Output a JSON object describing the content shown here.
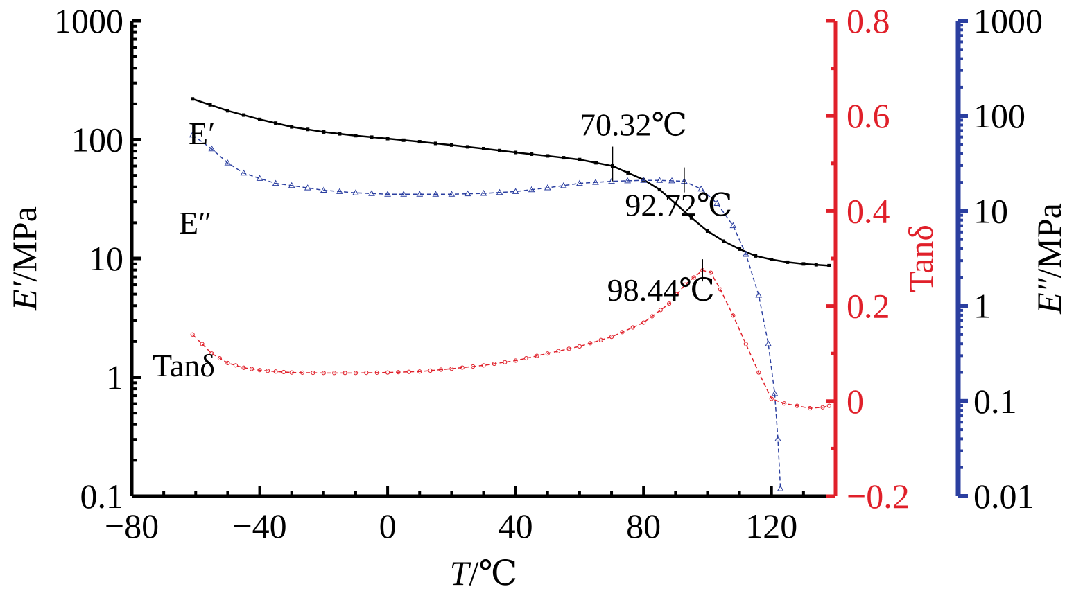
{
  "chart_data": {
    "type": "line",
    "title": "",
    "x_axis": {
      "label_italic": "T",
      "label_unit": "/℃",
      "range": [
        -80,
        140
      ],
      "ticks": [
        -80,
        -40,
        0,
        40,
        80,
        120
      ],
      "tick_labels": [
        "−80",
        "−40",
        "0",
        "40",
        "80",
        "120"
      ]
    },
    "y_left": {
      "label_italic": "E′",
      "label_unit": "/MPa",
      "scale": "log",
      "range": [
        0.1,
        1000
      ],
      "ticks": [
        0.1,
        1,
        10,
        100,
        1000
      ],
      "tick_labels": [
        "0.1",
        "1",
        "10",
        "100",
        "1000"
      ],
      "color": "#000000"
    },
    "y_tan": {
      "label": "Tanδ",
      "scale": "linear",
      "range": [
        -0.2,
        0.8
      ],
      "ticks": [
        -0.2,
        0,
        0.2,
        0.4,
        0.6,
        0.8
      ],
      "tick_labels": [
        "−0.2",
        "0",
        "0.2",
        "0.4",
        "0.6",
        "0.8"
      ],
      "color": "#e0202a"
    },
    "y_loss": {
      "label_italic": "E″",
      "label_unit": "/MPa",
      "scale": "log",
      "range": [
        0.01,
        1000
      ],
      "ticks": [
        0.01,
        0.1,
        1,
        10,
        100,
        1000
      ],
      "tick_labels": [
        "0.01",
        "0.1",
        "1",
        "10",
        "100",
        "1000"
      ],
      "color": "#2b3fa0"
    },
    "series": [
      {
        "name": "E′",
        "axis": "left",
        "color": "#000000",
        "marker": "square",
        "x": [
          -61,
          -50,
          -40,
          -30,
          -20,
          -10,
          0,
          10,
          20,
          30,
          40,
          50,
          60,
          70.32,
          80,
          85,
          90,
          95,
          100,
          105,
          110,
          115,
          120,
          125,
          130,
          138
        ],
        "y": [
          220,
          175,
          148,
          128,
          116,
          108,
          102,
          96,
          90,
          84,
          78,
          73,
          68,
          60,
          46,
          38,
          29,
          22,
          17,
          14,
          12,
          10.5,
          9.8,
          9.3,
          9.0,
          8.7
        ]
      },
      {
        "name": "E″",
        "axis": "loss",
        "color": "#2b3fa0",
        "marker": "triangle",
        "x": [
          -61,
          -55,
          -50,
          -45,
          -40,
          -35,
          -30,
          -20,
          -10,
          0,
          10,
          20,
          30,
          40,
          50,
          60,
          70,
          80,
          85,
          92.72,
          98,
          103,
          108,
          112,
          116,
          119,
          121,
          122,
          122.8
        ],
        "y": [
          63,
          45,
          32,
          25,
          22,
          19.5,
          18.5,
          16.5,
          15.5,
          15,
          15,
          15,
          15.3,
          16,
          17.5,
          19.5,
          20.5,
          21,
          21,
          20.5,
          17,
          12,
          7,
          3.5,
          1.3,
          0.4,
          0.12,
          0.04,
          0.012
        ]
      },
      {
        "name": "Tanδ",
        "axis": "tan",
        "color": "#e0202a",
        "marker": "circle",
        "x": [
          -61,
          -55,
          -50,
          -45,
          -40,
          -35,
          -30,
          -20,
          -10,
          0,
          10,
          20,
          30,
          40,
          50,
          60,
          70,
          80,
          88,
          93,
          98.44,
          101,
          104,
          108,
          112,
          116,
          120,
          124,
          128,
          132,
          136,
          138
        ],
        "y": [
          0.14,
          0.1,
          0.08,
          0.07,
          0.065,
          0.062,
          0.06,
          0.059,
          0.059,
          0.06,
          0.062,
          0.068,
          0.075,
          0.085,
          0.1,
          0.115,
          0.135,
          0.165,
          0.205,
          0.245,
          0.275,
          0.27,
          0.235,
          0.18,
          0.12,
          0.06,
          0.005,
          -0.005,
          -0.01,
          -0.015,
          -0.013,
          -0.01
        ]
      }
    ],
    "series_labels": [
      "E′",
      "E″",
      "Tanδ"
    ],
    "annotations": [
      {
        "text": "70.32℃",
        "series": "E′",
        "x": 70.32,
        "y": 60
      },
      {
        "text": "92.72℃",
        "series": "E″",
        "x": 92.72,
        "y": 20.5
      },
      {
        "text": "98.44℃",
        "series": "Tanδ",
        "x": 98.44,
        "y": 0.275
      }
    ]
  }
}
